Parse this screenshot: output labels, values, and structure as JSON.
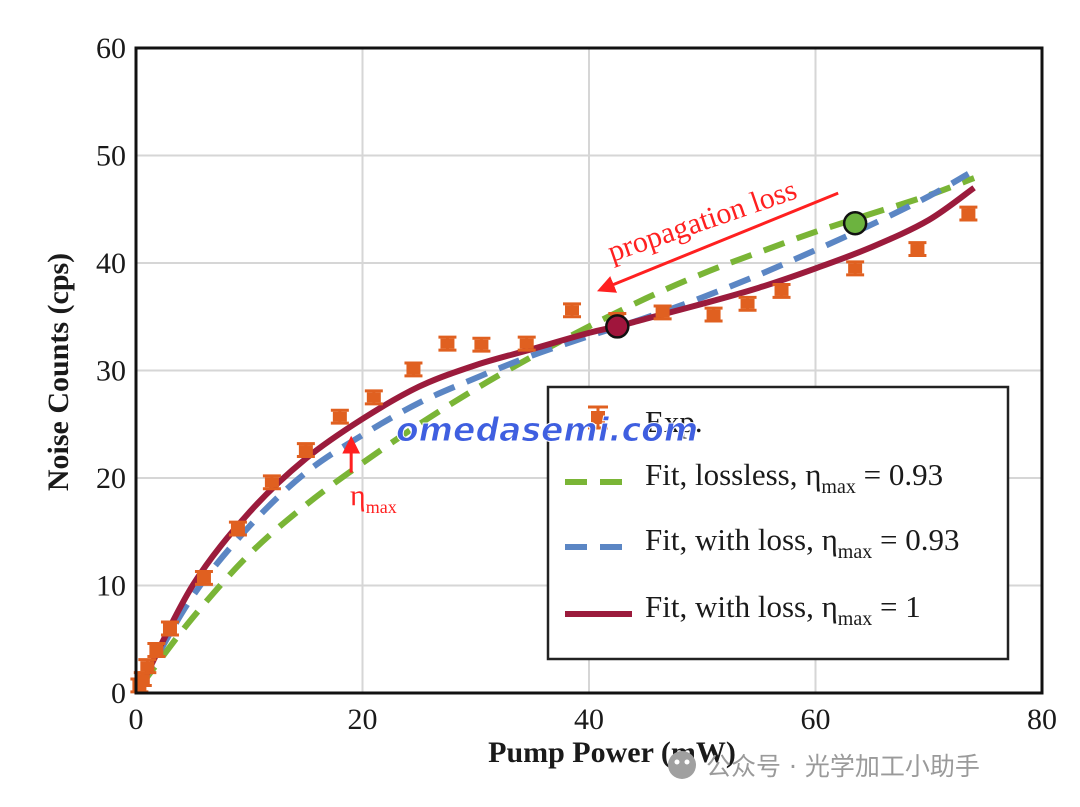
{
  "chart_data": {
    "type": "line",
    "xlabel": "Pump Power (mW)",
    "ylabel": "Noise Counts (cps)",
    "xlim": [
      0,
      80
    ],
    "ylim": [
      0,
      60
    ],
    "x_ticks": [
      "0",
      "20",
      "40",
      "60",
      "80"
    ],
    "y_ticks": [
      "0",
      "10",
      "20",
      "30",
      "40",
      "50",
      "60"
    ],
    "grid": true,
    "legend_position": "bottom-right",
    "series": [
      {
        "name": "Exp.",
        "kind": "scatter-errorbar",
        "color": "#e06020",
        "x": [
          0.3,
          0.6,
          1.0,
          1.8,
          3.0,
          6.0,
          9.0,
          12.0,
          15.0,
          18.0,
          21.0,
          24.5,
          27.5,
          30.5,
          34.5,
          38.5,
          42.5,
          46.5,
          51.0,
          54.0,
          57.0,
          63.5,
          69.0,
          73.5
        ],
        "y": [
          0.7,
          1.3,
          2.5,
          4.0,
          6.0,
          10.7,
          15.3,
          19.6,
          22.6,
          25.7,
          27.5,
          30.1,
          32.5,
          32.4,
          32.5,
          35.6,
          34.7,
          35.4,
          35.2,
          36.2,
          37.4,
          39.5,
          41.3,
          44.6
        ],
        "yerr": 0.6
      },
      {
        "name": "Fit, lossless, ηmax = 0.93",
        "kind": "dashed",
        "color": "#7ab536",
        "x": [
          0.5,
          5,
          10,
          15,
          20,
          25,
          30,
          35,
          40,
          45,
          50,
          55,
          60,
          65,
          70,
          74
        ],
        "y": [
          0.8,
          7.0,
          12.9,
          17.5,
          21.4,
          25.0,
          28.3,
          31.3,
          34.1,
          36.7,
          39.0,
          41.0,
          42.9,
          44.6,
          46.3,
          47.9
        ]
      },
      {
        "name": "Fit, with loss, ηmax = 0.93",
        "kind": "dashed",
        "color": "#5b86c4",
        "x": [
          0.5,
          5,
          10,
          15,
          20,
          25,
          30,
          35,
          40,
          45,
          50,
          55,
          60,
          65,
          70,
          73.5
        ],
        "y": [
          0.8,
          9.0,
          15.5,
          20.5,
          24.0,
          27.0,
          29.3,
          31.4,
          33.2,
          34.9,
          36.8,
          38.9,
          41.2,
          43.6,
          46.2,
          48.3
        ]
      },
      {
        "name": "Fit, with loss, ηmax = 1",
        "kind": "solid",
        "color": "#9b1b3c",
        "x": [
          0.5,
          5,
          10,
          15,
          20,
          25,
          30,
          35,
          40,
          42.5,
          45,
          50,
          55,
          60,
          65,
          70,
          74
        ],
        "y": [
          0.8,
          10.0,
          16.8,
          21.8,
          25.5,
          28.5,
          30.5,
          32.0,
          33.5,
          34.1,
          34.8,
          36.2,
          37.7,
          39.5,
          41.5,
          44.0,
          47.0
        ]
      }
    ],
    "markers": [
      {
        "name": "red-point",
        "x": 42.5,
        "y": 34.1,
        "color": "#a0153c"
      },
      {
        "name": "green-point",
        "x": 63.5,
        "y": 43.7,
        "color": "#6cb33f"
      }
    ],
    "annotations": {
      "propagation_loss": {
        "text": "propagation loss",
        "color": "#ff2020",
        "from": [
          62,
          46.5
        ],
        "to": [
          41,
          37.5
        ]
      },
      "eta_max": {
        "symbol": "η",
        "subscript": "max",
        "color": "#ff2020",
        "arrow_from": [
          19,
          20.5
        ],
        "arrow_to": [
          19,
          23.6
        ]
      }
    },
    "legend": [
      {
        "label": "Exp.",
        "symbol": "errorbar",
        "color": "#e06020"
      },
      {
        "label_prefix": "Fit, lossless, η",
        "label_sub": "max",
        "label_suffix": " = 0.93",
        "symbol": "dashed",
        "color": "#7ab536"
      },
      {
        "label_prefix": "Fit, with loss, η",
        "label_sub": "max",
        "label_suffix": " = 0.93",
        "symbol": "dashed",
        "color": "#5b86c4"
      },
      {
        "label_prefix": "Fit, with loss, η",
        "label_sub": "max",
        "label_suffix": " = 1",
        "symbol": "solid",
        "color": "#9b1b3c"
      }
    ]
  },
  "watermark": {
    "text": "omedasemi.com"
  },
  "credit": {
    "text": "公众号 · 光学加工小助手"
  }
}
